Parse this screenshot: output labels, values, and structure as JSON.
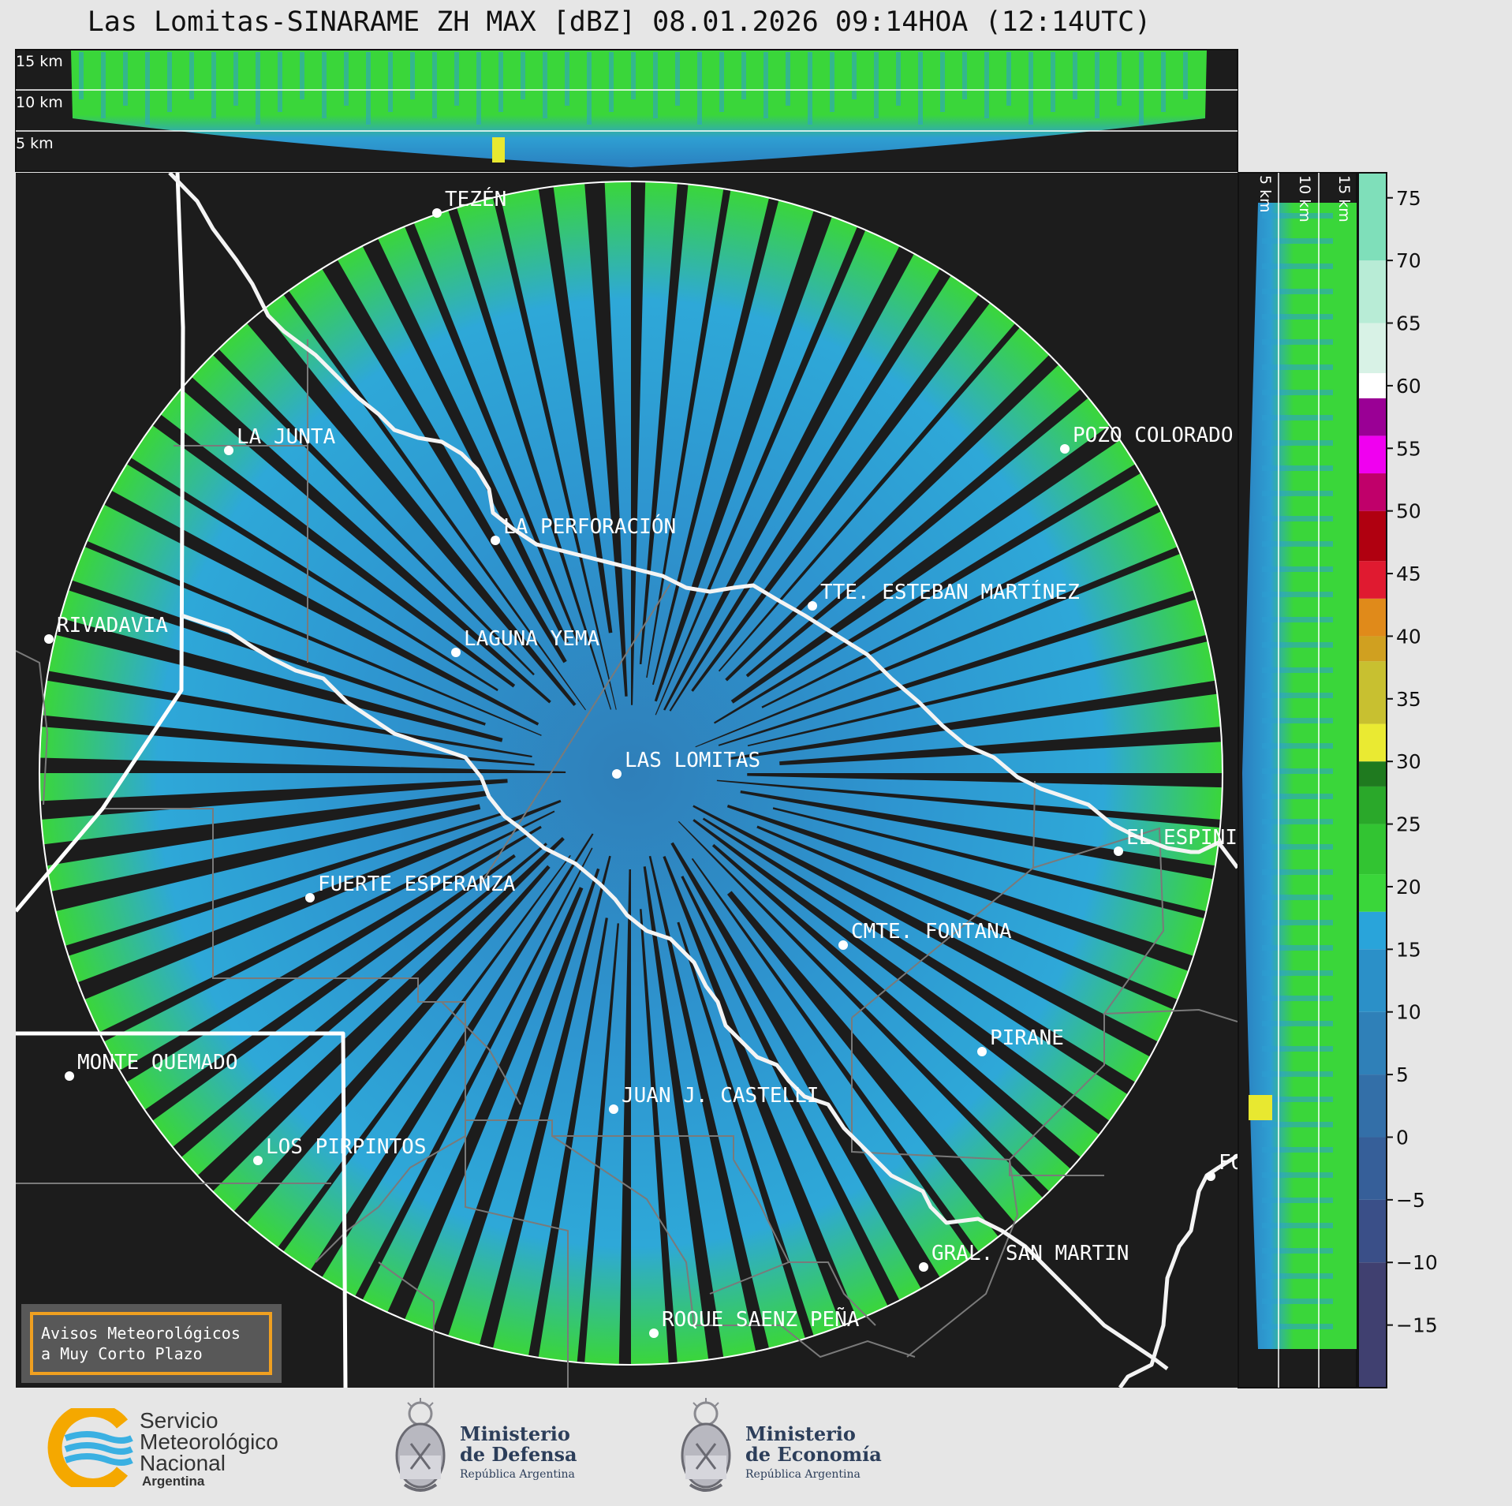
{
  "title": "Las Lomitas-SINARAME ZH MAX [dBZ] 08.01.2026 09:14HOA (12:14UTC)",
  "top_profile": {
    "height_labels": [
      "15 km",
      "10 km",
      "5 km"
    ]
  },
  "side_profile": {
    "height_labels": [
      "5 km",
      "10 km",
      "15 km"
    ]
  },
  "colorbar": {
    "ticks": [
      "75",
      "70",
      "65",
      "60",
      "55",
      "50",
      "45",
      "40",
      "35",
      "30",
      "25",
      "20",
      "15",
      "10",
      "5",
      "0",
      "−5",
      "−10",
      "−15"
    ],
    "tick_values": [
      75,
      70,
      65,
      60,
      55,
      50,
      45,
      40,
      35,
      30,
      25,
      20,
      15,
      10,
      5,
      0,
      -5,
      -10,
      -15
    ],
    "range": [
      -20,
      77
    ],
    "colors": [
      "#434378",
      "#3a5f95",
      "#2f7fb9",
      "#29a7dc",
      "#2ecf2e",
      "#1f7a1f",
      "#eaea32",
      "#c5b030",
      "#e08a1a",
      "#e01a30",
      "#b00000",
      "#f000f0",
      "#9a0095",
      "#ffffff",
      "#b8ecd6",
      "#7fdfba"
    ]
  },
  "locations": [
    {
      "name": "TEZÉN"
    },
    {
      "name": "LA JUNTA"
    },
    {
      "name": "POZO COLORADO"
    },
    {
      "name": "LA PERFORACIÓN"
    },
    {
      "name": "TTE. ESTEBAN MARTÍNEZ"
    },
    {
      "name": "RIVADAVIA"
    },
    {
      "name": "LAGUNA YEMA"
    },
    {
      "name": "LAS LOMITAS"
    },
    {
      "name": "EL ESPINILLO"
    },
    {
      "name": "FUERTE ESPERANZA"
    },
    {
      "name": "CMTE. FONTANA"
    },
    {
      "name": "PIRANE"
    },
    {
      "name": "MONTE QUEMADO"
    },
    {
      "name": "JUAN J. CASTELLI"
    },
    {
      "name": "LOS PIRPINTOS"
    },
    {
      "name": "GRAL. SAN MARTIN"
    },
    {
      "name": "ROQUE SAENZ PEÑA"
    },
    {
      "name": "FORMOSA"
    }
  ],
  "warning_box": {
    "line1": "Avisos Meteorológicos",
    "line2": "a Muy Corto Plazo"
  },
  "logos": {
    "smn": {
      "line1": "Servicio",
      "line2": "Meteorológico",
      "line3": "Nacional",
      "line4": "Argentina"
    },
    "defensa": {
      "line1": "Ministerio",
      "line2": "de Defensa",
      "line3": "República Argentina"
    },
    "economia": {
      "line1": "Ministerio",
      "line2": "de Economía",
      "line3": "República Argentina"
    }
  },
  "colors": {
    "background": "#1c1c1c",
    "page": "#e6e6e6",
    "weak_echo": "#2f8fd0",
    "moderate_echo": "#3ad63a",
    "border": "#ffffff",
    "warning_border": "#f0a020"
  }
}
